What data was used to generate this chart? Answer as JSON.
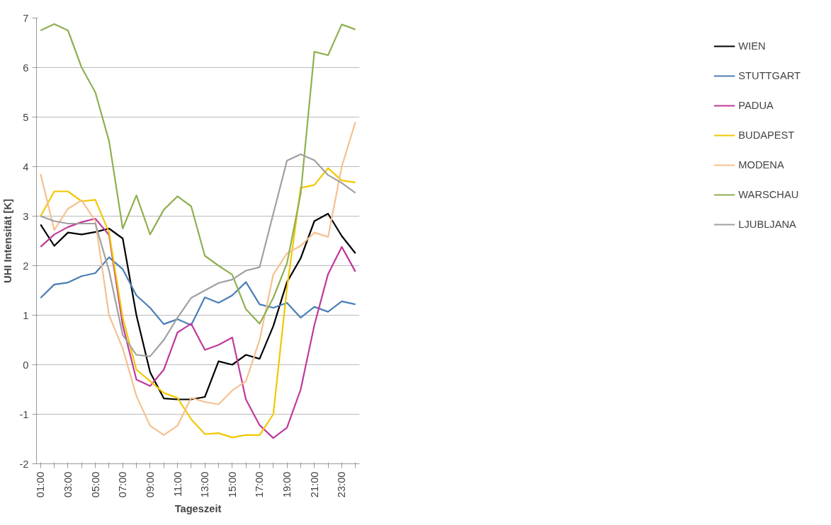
{
  "chart_data": {
    "type": "line",
    "xlabel": "Tageszeit",
    "ylabel": "UHI Intensität [K]",
    "categories": [
      "01:00",
      null,
      "03:00",
      null,
      "05:00",
      null,
      "07:00",
      null,
      "09:00",
      null,
      "11:00",
      null,
      "13:00",
      null,
      "15:00",
      null,
      "17:00",
      null,
      "19:00",
      null,
      "21:00",
      null,
      "23:00",
      null
    ],
    "ylim": [
      -2,
      7
    ],
    "yticks": [
      -2,
      -1,
      0,
      1,
      2,
      3,
      4,
      5,
      6,
      7
    ],
    "grid": "y",
    "legend": "right",
    "marker": "none",
    "line_style": "solid",
    "series": [
      {
        "name": "WIEN",
        "color": "#000000",
        "values": [
          2.83,
          2.4,
          2.67,
          2.63,
          2.68,
          2.75,
          2.55,
          1.0,
          -0.15,
          -0.68,
          -0.7,
          -0.7,
          -0.65,
          0.07,
          0.0,
          0.2,
          0.12,
          0.78,
          1.67,
          2.15,
          2.9,
          3.05,
          2.6,
          2.25
        ]
      },
      {
        "name": "STUTTGART",
        "color": "#4a7eb5",
        "values": [
          1.35,
          1.62,
          1.66,
          1.79,
          1.85,
          2.17,
          1.93,
          1.4,
          1.15,
          0.82,
          0.92,
          0.8,
          1.36,
          1.25,
          1.4,
          1.67,
          1.22,
          1.15,
          1.25,
          0.95,
          1.17,
          1.07,
          1.28,
          1.22
        ]
      },
      {
        "name": "PADUA",
        "color": "#c0399b",
        "values": [
          2.38,
          2.63,
          2.78,
          2.88,
          2.95,
          2.62,
          0.8,
          -0.3,
          -0.43,
          -0.1,
          0.65,
          0.83,
          0.3,
          0.4,
          0.55,
          -0.7,
          -1.22,
          -1.48,
          -1.27,
          -0.5,
          0.8,
          1.83,
          2.38,
          1.88
        ]
      },
      {
        "name": "BUDAPEST",
        "color": "#f0c800",
        "values": [
          3.0,
          3.5,
          3.5,
          3.3,
          3.33,
          2.67,
          0.95,
          -0.1,
          -0.33,
          -0.57,
          -0.67,
          -1.1,
          -1.4,
          -1.38,
          -1.47,
          -1.42,
          -1.42,
          -1.0,
          1.55,
          3.57,
          3.63,
          3.97,
          3.72,
          3.68
        ]
      },
      {
        "name": "MODENA",
        "color": "#f5c08f",
        "values": [
          3.85,
          2.72,
          3.15,
          3.32,
          2.9,
          1.0,
          0.33,
          -0.63,
          -1.23,
          -1.42,
          -1.23,
          -0.67,
          -0.75,
          -0.8,
          -0.52,
          -0.33,
          0.5,
          1.82,
          2.25,
          2.4,
          2.67,
          2.58,
          4.0,
          4.9
        ]
      },
      {
        "name": "WARSCHAU",
        "color": "#8fb050",
        "values": [
          6.75,
          6.88,
          6.75,
          6.0,
          5.5,
          4.52,
          2.75,
          3.42,
          2.63,
          3.13,
          3.4,
          3.2,
          2.2,
          2.0,
          1.82,
          1.12,
          0.83,
          1.35,
          2.05,
          3.45,
          6.32,
          6.25,
          6.87,
          6.77
        ]
      },
      {
        "name": "LJUBLJANA",
        "color": "#a0a0a0",
        "values": [
          3.0,
          2.9,
          2.85,
          2.85,
          2.85,
          1.9,
          0.6,
          0.2,
          0.17,
          0.5,
          0.95,
          1.35,
          1.5,
          1.65,
          1.72,
          1.9,
          1.97,
          3.05,
          4.12,
          4.25,
          4.13,
          3.83,
          3.67,
          3.47
        ]
      }
    ]
  }
}
